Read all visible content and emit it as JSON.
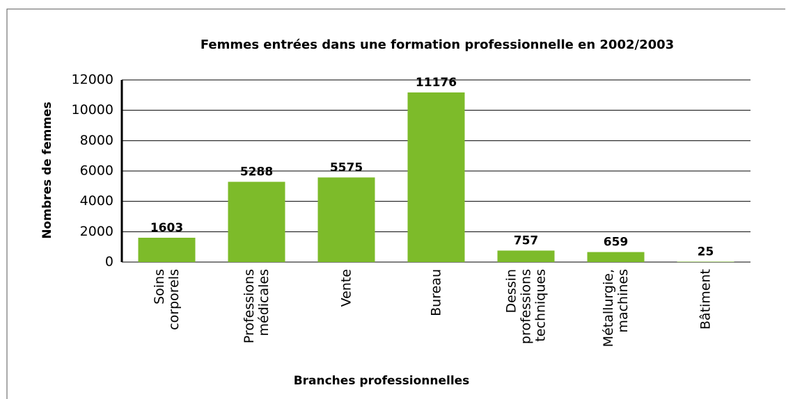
{
  "chart_data": {
    "type": "bar",
    "title": "Femmes entrées dans une formation professionnelle en 2002/2003",
    "x_label": "Branches professionnelles",
    "y_label": "Nombres de femmes",
    "categories": [
      "Soins corporels",
      "Professions médicales",
      "Vente",
      "Bureau",
      "Dessin professions techniques",
      "Métallurgie, machines",
      "Bâtiment"
    ],
    "values": [
      1603,
      5288,
      5575,
      11176,
      757,
      659,
      25
    ],
    "color": "#7dbb2a",
    "ylim": [
      0,
      12000
    ],
    "yticks": [
      0,
      2000,
      4000,
      6000,
      8000,
      10000,
      12000
    ],
    "grid": true
  }
}
